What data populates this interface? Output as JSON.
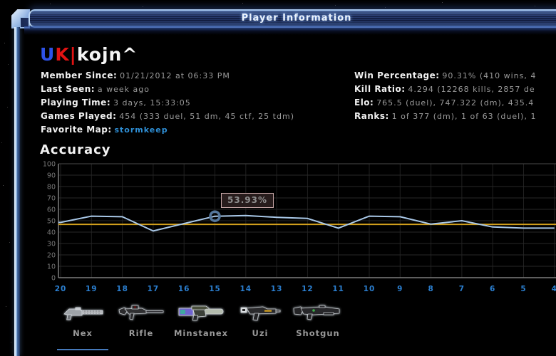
{
  "window": {
    "title": "Player Information"
  },
  "player": {
    "name_part_blue": "U",
    "name_part_red": "K|",
    "name_part_white": "kojn^"
  },
  "stats_left": [
    {
      "label": "Member Since:",
      "value": "01/21/2012 at 06:33 PM"
    },
    {
      "label": "Last Seen:",
      "value": "a week ago"
    },
    {
      "label": "Playing Time:",
      "value": "3 days, 15:33:05"
    },
    {
      "label": "Games Played:",
      "value": "454 (333 duel, 51 dm, 45 ctf, 25 tdm)"
    },
    {
      "label": "Favorite Map:",
      "value": "stormkeep"
    }
  ],
  "stats_right": [
    {
      "label": "Win Percentage:",
      "value": "90.31% (410 wins, 4"
    },
    {
      "label": "Kill Ratio:",
      "value": "4.294 (12268 kills, 2857 de"
    },
    {
      "label": "Elo:",
      "value": "765.5 (duel), 747.322 (dm), 435.4"
    },
    {
      "label": "Ranks:",
      "value": "1 of 377 (dm), 1 of 63 (duel), 1"
    }
  ],
  "section_title": "Accuracy",
  "chart_data": {
    "type": "line",
    "title": "Accuracy",
    "x": [
      20,
      19,
      18,
      17,
      16,
      15,
      14,
      13,
      12,
      11,
      10,
      9,
      8,
      7,
      6,
      5,
      4
    ],
    "values": [
      48.5,
      54,
      53.5,
      41,
      47.5,
      53.93,
      54.5,
      53,
      52,
      43.5,
      54,
      53.5,
      47,
      50,
      44.5,
      43.5,
      43.5
    ],
    "average_line": 46.8,
    "ylim": [
      0,
      100
    ],
    "y_ticks": [
      100,
      90,
      80,
      70,
      60,
      50,
      40,
      30,
      20,
      10,
      0
    ],
    "tooltip": {
      "text": "53.93%",
      "x": 15
    },
    "grid": true,
    "line_color": "#a9c8e8",
    "average_color": "#d4a11d",
    "x_label_color": "#2b7fd0",
    "y_label_color": "#7a7a7a",
    "marker_color": "#55779c"
  },
  "weapons": {
    "tabs": [
      {
        "label": "Nex",
        "icon": "nex-gun-icon",
        "selected": true
      },
      {
        "label": "Rifle",
        "icon": "rifle-gun-icon",
        "selected": false
      },
      {
        "label": "Minstanex",
        "icon": "minstanex-gun-icon",
        "selected": false
      },
      {
        "label": "Uzi",
        "icon": "uzi-gun-icon",
        "selected": false
      },
      {
        "label": "Shotgun",
        "icon": "shotgun-gun-icon",
        "selected": false
      }
    ]
  },
  "colors": {
    "frame_light_blue": "#a6c6ec",
    "titlebar_navy": "#1c2c55",
    "name_blue": "#2e52e8",
    "name_red": "#e21313",
    "link_blue": "#2e8fd6",
    "tab_underline": "#4579ba",
    "tooltip_border": "#c9a9a9"
  }
}
